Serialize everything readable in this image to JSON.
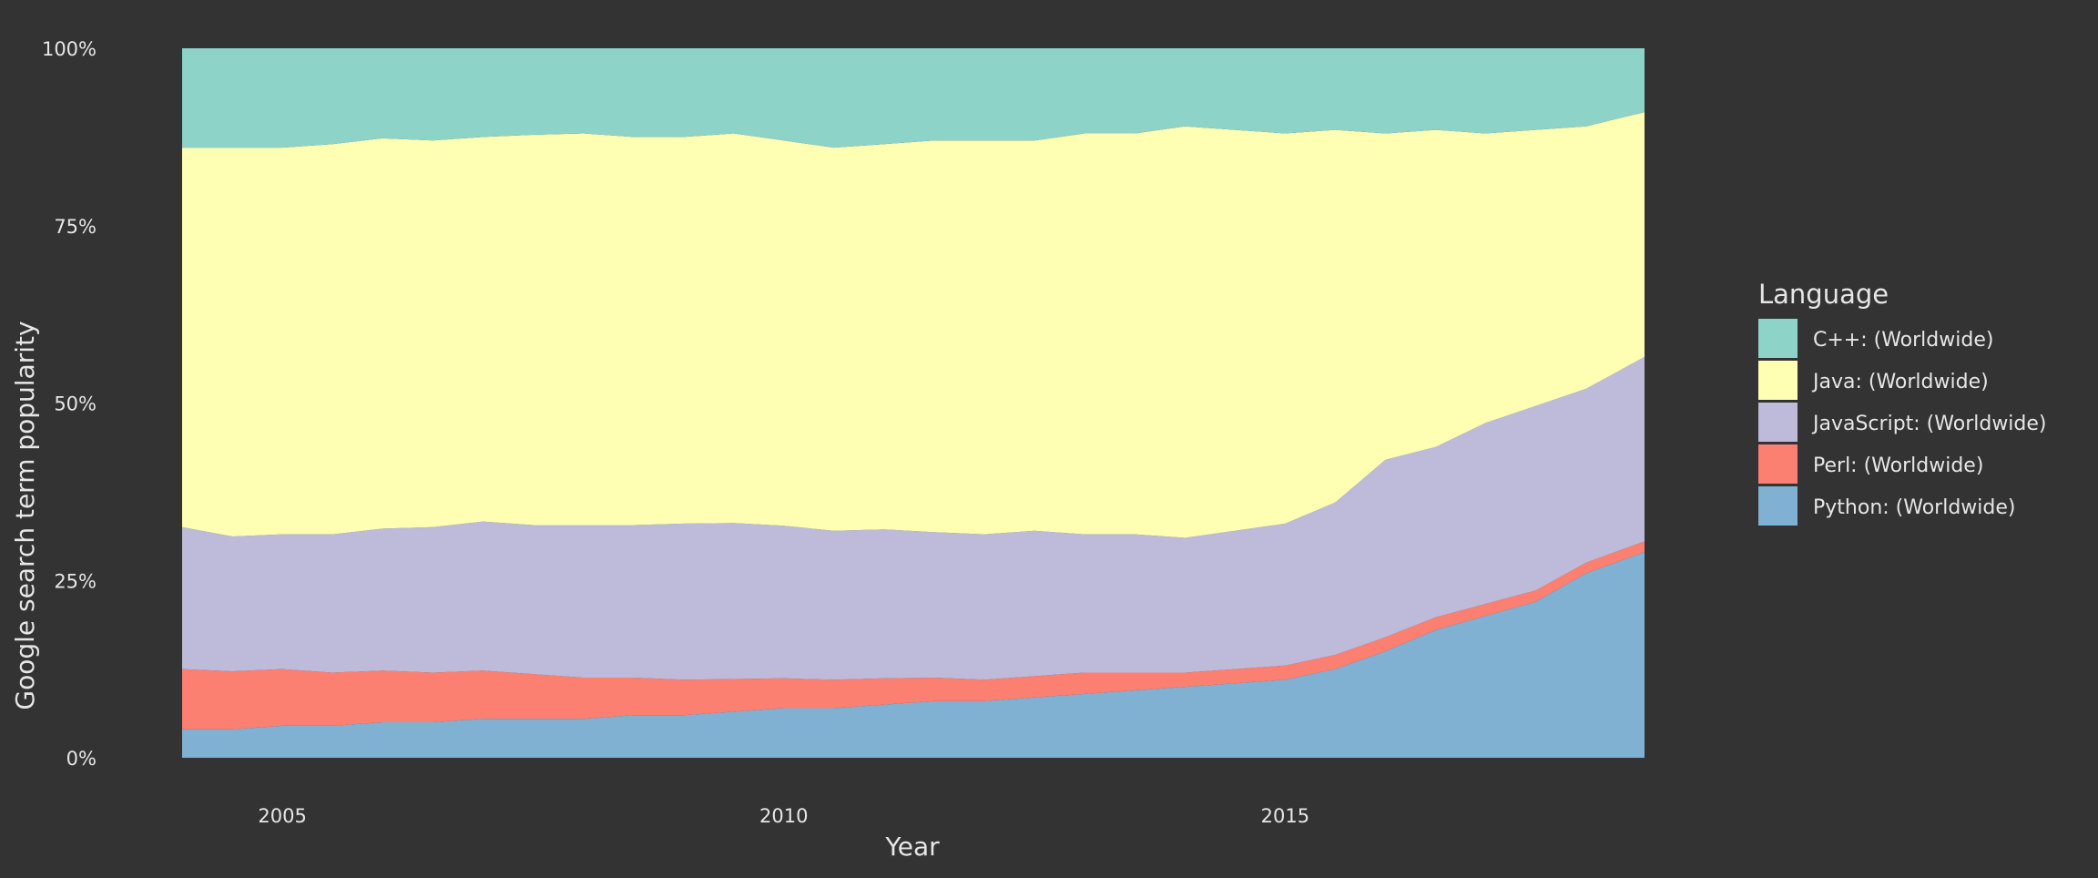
{
  "chart_data": {
    "type": "area",
    "stacked": true,
    "normalized": true,
    "xlabel": "Year",
    "ylabel": "Google search term popularity",
    "x_ticks": [
      "2005",
      "2010",
      "2015"
    ],
    "y_ticks": [
      "0%",
      "25%",
      "50%",
      "75%",
      "100%"
    ],
    "ylim": [
      0,
      100
    ],
    "x_range": [
      "2004-01",
      "2018-08"
    ],
    "legend_title": "Language",
    "legend_position": "right",
    "grid": false,
    "x": [
      "2004-01",
      "2004-07",
      "2005-01",
      "2005-07",
      "2006-01",
      "2006-07",
      "2007-01",
      "2007-07",
      "2008-01",
      "2008-07",
      "2009-01",
      "2009-07",
      "2010-01",
      "2010-07",
      "2011-01",
      "2011-07",
      "2012-01",
      "2012-07",
      "2013-01",
      "2013-07",
      "2014-01",
      "2014-07",
      "2015-01",
      "2015-07",
      "2016-01",
      "2016-07",
      "2017-01",
      "2017-07",
      "2018-01",
      "2018-08"
    ],
    "series": [
      {
        "name": "Python: (Worldwide)",
        "color": "#80B1D3",
        "values": [
          4,
          4,
          4.5,
          4.5,
          5,
          5,
          5.5,
          5.5,
          5.5,
          6,
          6,
          6.5,
          7,
          7,
          7.5,
          8,
          8,
          8.5,
          9,
          9.5,
          10,
          10.5,
          11,
          12.5,
          15,
          18,
          20,
          22,
          26,
          29
        ]
      },
      {
        "name": "Perl: (Worldwide)",
        "color": "#FB8072",
        "values": [
          8.5,
          8.2,
          8,
          7.5,
          7.3,
          7,
          6.8,
          6.3,
          5.8,
          5.3,
          5,
          4.6,
          4.2,
          4,
          3.7,
          3.3,
          3,
          3,
          3,
          2.5,
          2,
          2,
          2,
          2,
          2,
          1.8,
          1.7,
          1.6,
          1.5,
          1.5
        ]
      },
      {
        "name": "JavaScript: (Worldwide)",
        "color": "#BEBADA",
        "values": [
          20,
          19,
          19,
          19.5,
          20,
          20.5,
          21,
          21,
          21.5,
          21.5,
          22,
          22,
          21.5,
          21,
          21,
          20.5,
          20.5,
          20.5,
          19.5,
          19.5,
          19,
          19.5,
          20,
          21.5,
          25,
          24,
          25.5,
          26,
          24.5,
          26
        ]
      },
      {
        "name": "Java: (Worldwide)",
        "color": "#FFFFB3",
        "values": [
          53.5,
          54.8,
          54.5,
          55,
          55,
          54.5,
          54.2,
          55,
          55.2,
          54.7,
          54.5,
          54.9,
          54.3,
          54,
          54.3,
          55.2,
          55.5,
          55,
          56.5,
          56.5,
          58,
          56.5,
          55,
          52.5,
          46,
          44.7,
          40.8,
          38.9,
          37,
          34.5
        ]
      },
      {
        "name": "C++: (Worldwide)",
        "color": "#8DD3C7",
        "values": [
          14,
          14,
          14,
          13.5,
          12.7,
          13,
          12.5,
          12.2,
          12,
          12.5,
          12.5,
          12,
          13,
          14,
          13.5,
          13,
          13,
          13,
          12,
          12,
          11,
          11.5,
          12,
          11.5,
          12,
          11.5,
          12,
          11.5,
          11,
          9
        ]
      }
    ]
  }
}
